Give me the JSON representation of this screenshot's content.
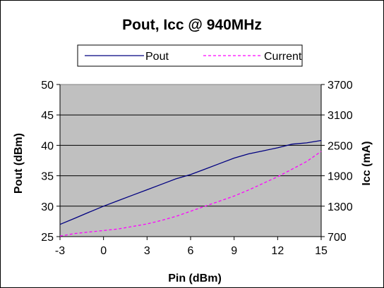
{
  "chart_data": {
    "type": "line",
    "title": "Pout, Icc @ 940MHz",
    "xlabel": "Pin  (dBm)",
    "ylabel": "Pout (dBm)",
    "y2label": "Icc (mA)",
    "xlim": [
      -3,
      15
    ],
    "ylim": [
      25,
      50
    ],
    "y2lim": [
      700,
      3700
    ],
    "xticks": [
      "-3",
      "0",
      "3",
      "6",
      "9",
      "12",
      "15"
    ],
    "yticks": [
      "25",
      "30",
      "35",
      "40",
      "45",
      "50"
    ],
    "y2ticks": [
      "700",
      "1300",
      "1900",
      "2500",
      "3100",
      "3700"
    ],
    "grid": true,
    "plot_background": "#c0c0c0",
    "legend_position": "top",
    "series": [
      {
        "name": "Pout",
        "axis": "left",
        "color": "#000080",
        "dash": "solid",
        "x": [
          -3,
          -2,
          -1,
          0,
          1,
          2,
          3,
          4,
          5,
          6,
          7,
          8,
          9,
          10,
          11,
          12,
          13,
          14,
          15
        ],
        "y": [
          27.0,
          28.0,
          29.0,
          30.0,
          30.9,
          31.8,
          32.7,
          33.6,
          34.5,
          35.2,
          36.1,
          37.0,
          37.9,
          38.6,
          39.1,
          39.6,
          40.2,
          40.4,
          40.8
        ]
      },
      {
        "name": "Current",
        "axis": "right",
        "color": "#ff00ff",
        "dash": "dashed",
        "x": [
          -3,
          -2,
          -1,
          0,
          1,
          2,
          3,
          4,
          5,
          6,
          7,
          8,
          9,
          10,
          11,
          12,
          13,
          14,
          15
        ],
        "y": [
          710,
          760,
          790,
          820,
          850,
          900,
          950,
          1020,
          1100,
          1200,
          1300,
          1400,
          1500,
          1620,
          1750,
          1880,
          2030,
          2180,
          2380
        ]
      }
    ]
  }
}
